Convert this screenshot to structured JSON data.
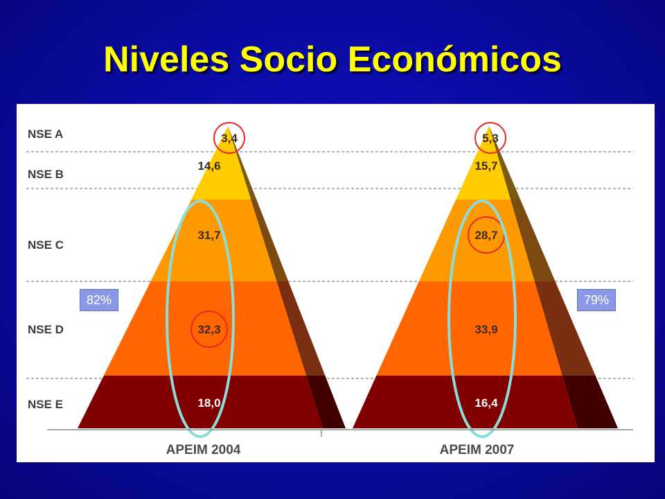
{
  "title": "Niveles Socio Económicos",
  "chart_data": {
    "type": "pyramid",
    "levels": [
      "NSE A",
      "NSE B",
      "NSE C",
      "NSE D",
      "NSE E"
    ],
    "series": [
      {
        "name": "APEIM 2004",
        "values": [
          "3,4",
          "14,6",
          "31,7",
          "32,3",
          "18,0"
        ],
        "highlighted": [
          "3,4",
          "32,3"
        ]
      },
      {
        "name": "APEIM 2007",
        "values": [
          "5,3",
          "15,7",
          "28,7",
          "33,9",
          "16,4"
        ],
        "highlighted": [
          "5,3",
          "28,7"
        ]
      }
    ],
    "annotations": {
      "left": "82%",
      "right": "79%"
    },
    "colors": {
      "A": "#ffcc00",
      "B": "#ffcc00",
      "C": "#ff9900",
      "D": "#ff6600",
      "E": "#800000",
      "highlight_circle": "#e8282a",
      "ellipse": "#8cdcdc",
      "badge": "#8a9ae6"
    }
  }
}
